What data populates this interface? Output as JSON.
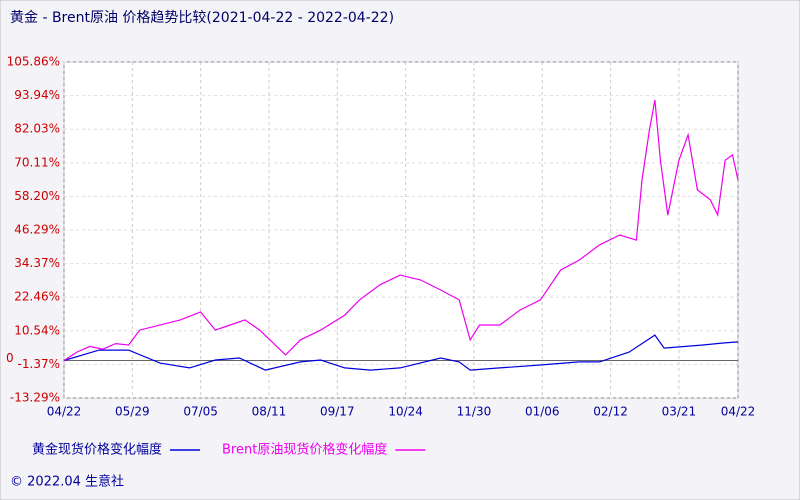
{
  "chart_data": {
    "type": "line",
    "title": "黄金 - Brent原油 价格趋势比较(2021-04-22 - 2022-04-22)",
    "footer": "© 2022.04 生意社",
    "xlim": [
      0,
      365
    ],
    "xticks": [
      {
        "value": 0,
        "label": "04/22"
      },
      {
        "value": 37,
        "label": "05/29"
      },
      {
        "value": 74,
        "label": "07/05"
      },
      {
        "value": 111,
        "label": "08/11"
      },
      {
        "value": 148,
        "label": "09/17"
      },
      {
        "value": 185,
        "label": "10/24"
      },
      {
        "value": 222,
        "label": "11/30"
      },
      {
        "value": 259,
        "label": "01/06"
      },
      {
        "value": 296,
        "label": "02/12"
      },
      {
        "value": 333,
        "label": "03/21"
      },
      {
        "value": 365,
        "label": "04/22"
      }
    ],
    "ylim": [
      -13.29,
      105.86
    ],
    "yticks": [
      {
        "value": -13.29,
        "label": "-13.29%"
      },
      {
        "value": -1.37,
        "label": "-1.37%"
      },
      {
        "value": 10.54,
        "label": "10.54%"
      },
      {
        "value": 22.46,
        "label": "22.46%"
      },
      {
        "value": 34.37,
        "label": "34.37%"
      },
      {
        "value": 46.29,
        "label": "46.29%"
      },
      {
        "value": 58.2,
        "label": "58.20%"
      },
      {
        "value": 70.11,
        "label": "70.11%"
      },
      {
        "value": 82.03,
        "label": "82.03%"
      },
      {
        "value": 93.94,
        "label": "93.94%"
      },
      {
        "value": 105.86,
        "label": "105.86%"
      }
    ],
    "reference_line": {
      "value": 0,
      "label": "0"
    },
    "grid": true,
    "series": [
      {
        "name": "黄金现货价格变化幅度",
        "color": "#0000dd",
        "x": [
          0,
          19,
          35,
          52,
          68,
          82,
          95,
          109,
          128,
          139,
          152,
          166,
          182,
          204,
          214,
          220,
          236,
          258,
          279,
          290,
          306,
          320,
          325,
          346,
          357,
          365
        ],
        "values": [
          0,
          3.7,
          3.7,
          -0.9,
          -2.6,
          0.2,
          0.9,
          -3.4,
          -0.5,
          0.2,
          -2.6,
          -3.4,
          -2.6,
          0.9,
          -0.5,
          -3.4,
          -2.6,
          -1.6,
          -0.5,
          -0.5,
          3,
          9,
          4.4,
          5.5,
          6.2,
          6.6
        ]
      },
      {
        "name": "Brent原油现货价格变化幅度",
        "color": "#ee00ee",
        "x": [
          0,
          7,
          14,
          21,
          28,
          35,
          41,
          63,
          74,
          82,
          90,
          98,
          106,
          120,
          128,
          139,
          152,
          160,
          171,
          182,
          193,
          204,
          214,
          220,
          225,
          236,
          247,
          258,
          269,
          279,
          290,
          301,
          310,
          313,
          317,
          320,
          323,
          327,
          333,
          338,
          343,
          350,
          354,
          358,
          362,
          365
        ],
        "values": [
          0,
          3,
          5,
          4,
          6,
          5.5,
          10.8,
          14.4,
          17.2,
          10.8,
          12.6,
          14.4,
          10.8,
          2,
          7.3,
          10.8,
          16.1,
          21.5,
          26.8,
          30.3,
          28.6,
          25,
          21.5,
          7.3,
          12.6,
          12.6,
          17.9,
          21.5,
          32.1,
          35.6,
          41,
          44.5,
          42.7,
          64,
          81.7,
          92.4,
          71,
          51.6,
          71,
          80,
          60.5,
          57,
          51.6,
          71,
          72.9,
          64
        ]
      }
    ]
  }
}
